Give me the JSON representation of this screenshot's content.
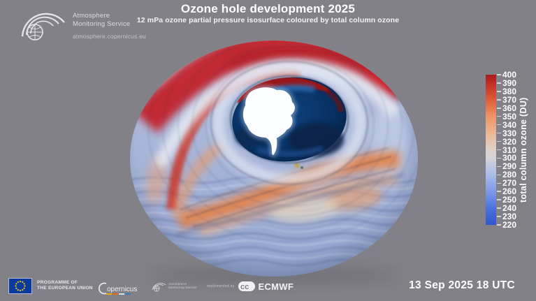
{
  "header": {
    "cams_logo": {
      "line1": "Atmosphere",
      "line2": "Monitoring Service",
      "url": "atmosphere.copernicus.eu"
    },
    "title": "Ozone hole development 2025",
    "subtitle": "12 mPa ozone partial pressure isosurface coloured by total column ozone"
  },
  "chart_data": {
    "type": "3d-isosurface",
    "title": "Ozone hole development 2025",
    "subtitle": "12 mPa ozone partial pressure isosurface coloured by total column ozone",
    "projection": "south polar view over Antarctica",
    "timestamp": "13 Sep 2025 18 UTC",
    "colorbar": {
      "label": "total column ozone (DU)",
      "units": "DU",
      "min": 220,
      "max": 400,
      "tick_step": 10,
      "ticks": [
        400,
        390,
        380,
        370,
        360,
        350,
        340,
        330,
        320,
        310,
        300,
        290,
        280,
        270,
        260,
        250,
        240,
        230,
        220
      ],
      "stops": [
        {
          "value": 220,
          "color": "#3156cc"
        },
        {
          "value": 240,
          "color": "#4c72dc"
        },
        {
          "value": 260,
          "color": "#7e9ae6"
        },
        {
          "value": 280,
          "color": "#a9bce8"
        },
        {
          "value": 300,
          "color": "#d3d3d8"
        },
        {
          "value": 310,
          "color": "#ddd2c8"
        },
        {
          "value": 330,
          "color": "#eab795"
        },
        {
          "value": 350,
          "color": "#ed9468"
        },
        {
          "value": 370,
          "color": "#de5c3a"
        },
        {
          "value": 390,
          "color": "#c02c26"
        },
        {
          "value": 400,
          "color": "#a51c1e"
        }
      ]
    },
    "features": [
      {
        "name": "ozone hole interior over Antarctic ocean",
        "approx_value_DU": "220-240",
        "color": "dark navy"
      },
      {
        "name": "Antarctic continent visible through hole",
        "color": "white"
      },
      {
        "name": "high-ozone collar around polar vortex (top of view)",
        "approx_value_DU": "380-400",
        "color": "red"
      },
      {
        "name": "spiralling mid-value filaments below/around hole",
        "approx_value_DU": "310-360",
        "color": "orange/salmon"
      },
      {
        "name": "surrounding mid-latitude surface",
        "approx_value_DU": "260-300",
        "color": "pale blue-grey"
      }
    ]
  },
  "footer": {
    "eu_programme_line1": "PROGRAMME OF",
    "eu_programme_line2": "THE EUROPEAN UNION",
    "copernicus_label": "opernicus",
    "cams_small_logo_line1": "Atmosphere",
    "cams_small_logo_line2": "Monitoring Service",
    "implemented_by": "implemented by",
    "ecmwf_label": "ECMWF",
    "timestamp": "13 Sep 2025 18 UTC"
  },
  "colors": {
    "background": "#818187",
    "text": "#ffffff",
    "eu_flag_blue": "#0a3a9e",
    "eu_star_yellow": "#ffcc00",
    "hole_navy": "#08234d",
    "antarctica_white": "#fdfeff",
    "globe_base_blue": "#a6b4d8",
    "band_red": "#c1202a",
    "band_orange": "#e2854f"
  }
}
